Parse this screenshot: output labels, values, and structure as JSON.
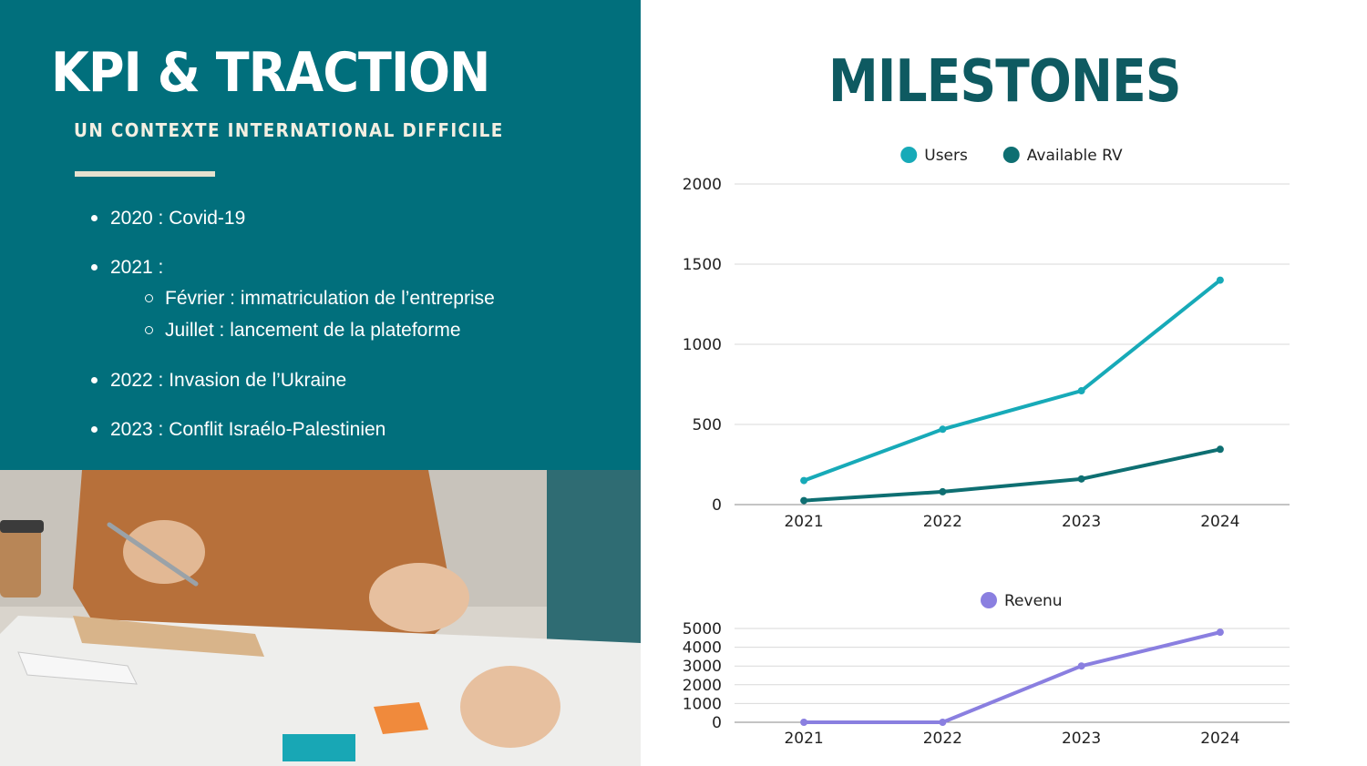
{
  "left": {
    "title": "KPI & TRACTION",
    "subtitle": "UN CONTEXTE INTERNATIONAL DIFFICILE",
    "items": [
      {
        "text": "2020 : Covid-19"
      },
      {
        "text": "2021 :",
        "subitems": [
          "Février : immatriculation de l’entreprise",
          "Juillet : lancement de la plateforme"
        ]
      },
      {
        "text": "2022 : Invasion de l’Ukraine"
      },
      {
        "text": "2023 : Conflit Israélo-Palestinien"
      }
    ]
  },
  "right": {
    "title": "MILESTONES"
  },
  "colors": {
    "panel": "#016f7c",
    "users": "#17aab8",
    "available_rv": "#0e6f72",
    "revenu": "#8a7fe0",
    "title_dark": "#0e5a61",
    "grid": "#d9d9d9",
    "axis": "#8a8a8a"
  },
  "chart_data": [
    {
      "type": "line",
      "categories": [
        "2021",
        "2022",
        "2023",
        "2024"
      ],
      "series": [
        {
          "name": "Users",
          "values": [
            150,
            470,
            710,
            1400
          ]
        },
        {
          "name": "Available RV",
          "values": [
            25,
            80,
            160,
            345
          ]
        }
      ],
      "yticks": [
        "0",
        "500",
        "1000",
        "1500",
        "2000"
      ],
      "ylim": [
        0,
        2000
      ],
      "grid": true,
      "legend": "top-center"
    },
    {
      "type": "line",
      "categories": [
        "2021",
        "2022",
        "2023",
        "2024"
      ],
      "series": [
        {
          "name": "Revenu",
          "values": [
            0,
            0,
            3000,
            4800
          ]
        }
      ],
      "yticks": [
        "0",
        "1000",
        "2000",
        "3000",
        "4000",
        "5000"
      ],
      "ylim": [
        0,
        5000
      ],
      "grid": true,
      "legend": "top-center"
    }
  ]
}
